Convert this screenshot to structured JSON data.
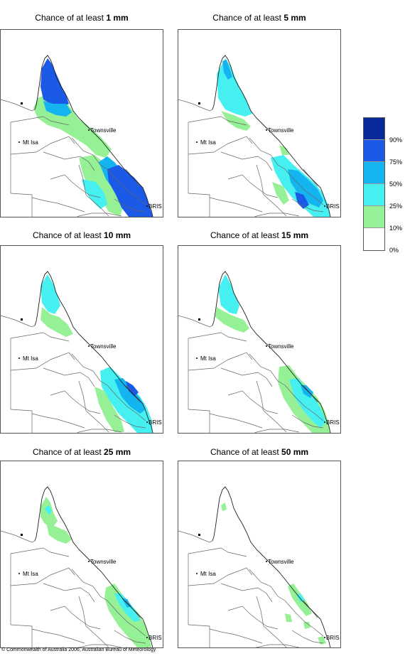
{
  "panels": [
    {
      "prefix": "Chance of at least ",
      "amount": "1 mm"
    },
    {
      "prefix": "Chance of at least ",
      "amount": "5 mm"
    },
    {
      "prefix": "Chance of at least ",
      "amount": "10 mm"
    },
    {
      "prefix": "Chance of at least ",
      "amount": "15 mm"
    },
    {
      "prefix": "Chance of at least ",
      "amount": "25 mm"
    },
    {
      "prefix": "Chance of at least ",
      "amount": "50 mm"
    }
  ],
  "places": {
    "townsville": "Townsville",
    "mt_isa": "Mt Isa",
    "brisbane": "BRIS"
  },
  "legend": {
    "labels": [
      "90%",
      "75%",
      "50%",
      "25%",
      "10%",
      "0%"
    ],
    "colors": [
      "#0a2a9c",
      "#1a5ae6",
      "#14b4f0",
      "#46f0f0",
      "#96f096",
      "#ffffff"
    ]
  },
  "footer": "© Commonwealth of Australia 2006, Australian Bureau of Meteorology"
}
